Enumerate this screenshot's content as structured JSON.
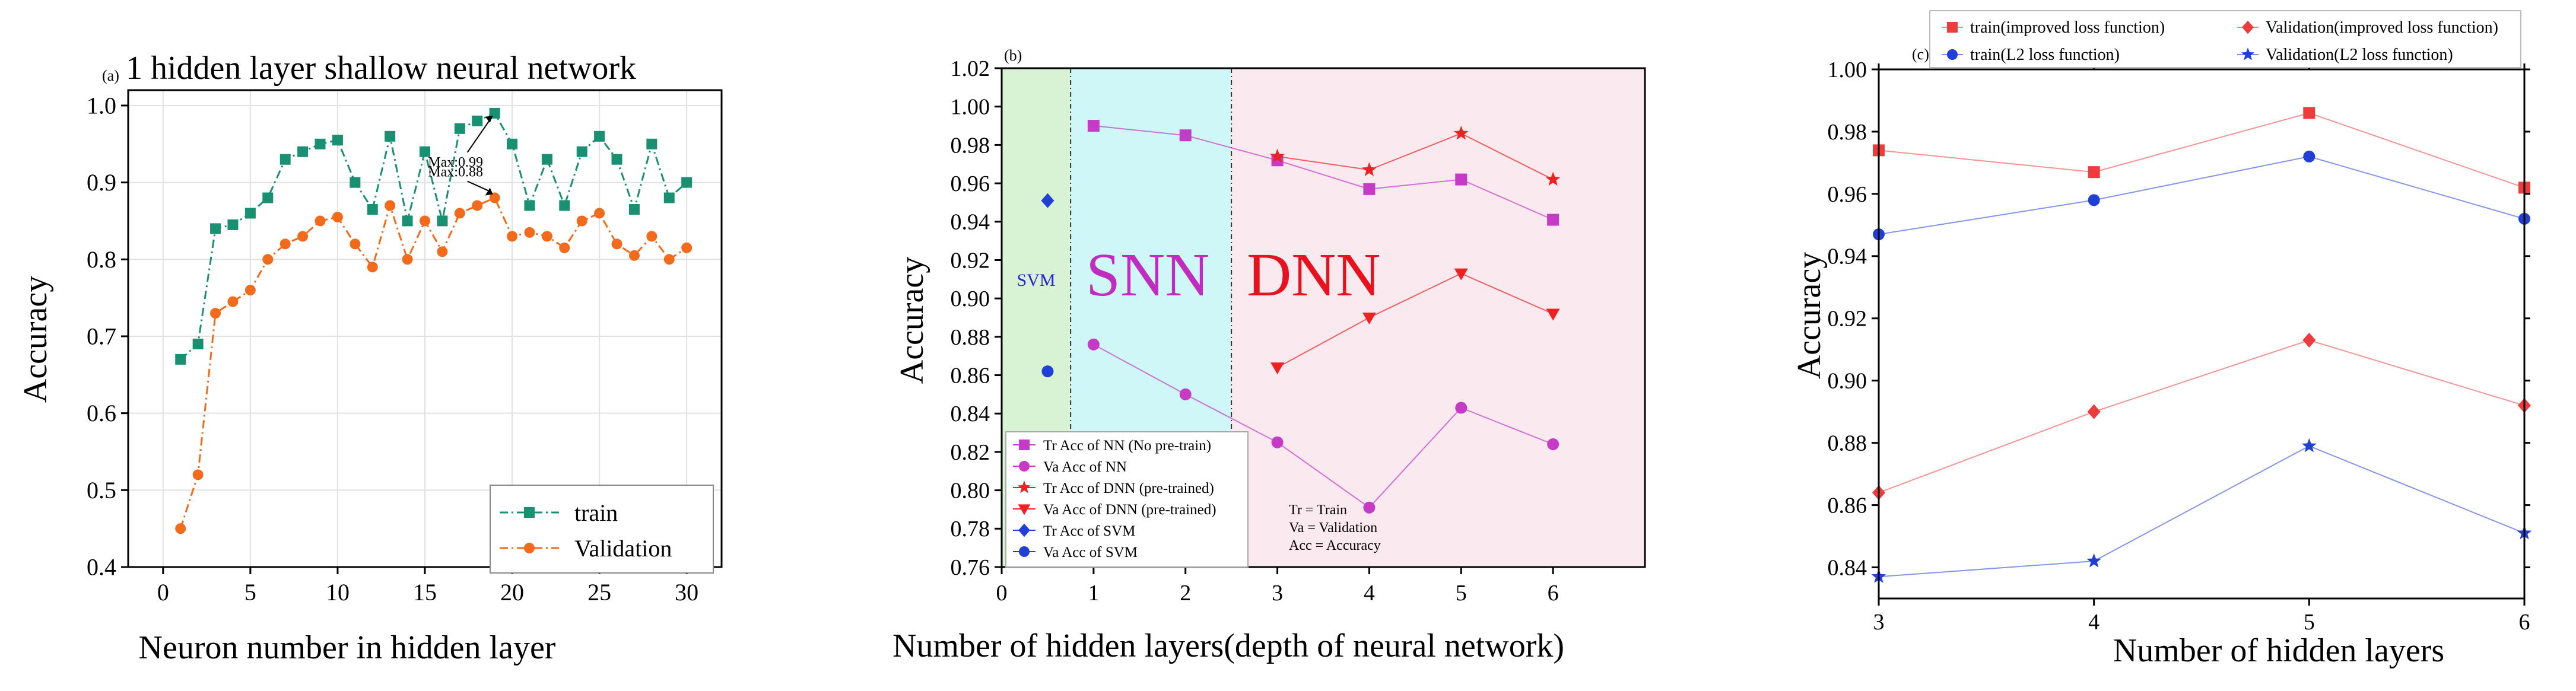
{
  "chart_data": [
    {
      "panel": "(a)",
      "type": "line",
      "title": "1 hidden layer shallow neural network",
      "xlabel": "Neuron number in hidden layer",
      "ylabel": "Accuracy",
      "xlim": [
        -2,
        32
      ],
      "ylim": [
        0.4,
        1.02
      ],
      "xticks": [
        0,
        5,
        10,
        15,
        20,
        25,
        30
      ],
      "xtick_labels": [
        "0",
        "5",
        "10",
        "15",
        "20",
        "25",
        "30"
      ],
      "yticks": [
        0.4,
        0.5,
        0.6,
        0.7,
        0.8,
        0.9,
        1.0
      ],
      "ytick_labels": [
        "0.4",
        "0.5",
        "0.6",
        "0.7",
        "0.8",
        "0.9",
        "1.0"
      ],
      "grid": true,
      "legend_position": "bottom-right",
      "series": [
        {
          "name": "train",
          "color": "#1a9073",
          "marker": "square",
          "line": "dash-dot",
          "x": [
            1,
            2,
            3,
            4,
            5,
            6,
            7,
            8,
            9,
            10,
            11,
            12,
            13,
            14,
            15,
            16,
            17,
            18,
            19,
            20,
            21,
            22,
            23,
            24,
            25,
            26,
            27,
            28,
            29,
            30
          ],
          "values": [
            0.67,
            0.69,
            0.84,
            0.845,
            0.86,
            0.88,
            0.93,
            0.94,
            0.95,
            0.955,
            0.9,
            0.865,
            0.96,
            0.85,
            0.94,
            0.85,
            0.97,
            0.98,
            0.99,
            0.95,
            0.87,
            0.93,
            0.87,
            0.94,
            0.96,
            0.93,
            0.865,
            0.95,
            0.88,
            0.9
          ]
        },
        {
          "name": "Validation",
          "color": "#f26b1d",
          "marker": "circle",
          "line": "dash-dot",
          "x": [
            1,
            2,
            3,
            4,
            5,
            6,
            7,
            8,
            9,
            10,
            11,
            12,
            13,
            14,
            15,
            16,
            17,
            18,
            19,
            20,
            21,
            22,
            23,
            24,
            25,
            26,
            27,
            28,
            29,
            30
          ],
          "values": [
            0.45,
            0.52,
            0.73,
            0.745,
            0.76,
            0.8,
            0.82,
            0.83,
            0.85,
            0.855,
            0.82,
            0.79,
            0.87,
            0.8,
            0.85,
            0.81,
            0.86,
            0.87,
            0.88,
            0.83,
            0.835,
            0.83,
            0.815,
            0.85,
            0.86,
            0.82,
            0.805,
            0.83,
            0.8,
            0.815
          ]
        }
      ],
      "annotations": [
        {
          "text": "Max:0.99",
          "x": 19,
          "y": 0.99
        },
        {
          "text": "Max:0.88",
          "x": 19,
          "y": 0.88
        }
      ]
    },
    {
      "panel": "(b)",
      "type": "scatter",
      "xlabel": "Number of hidden layers(depth of neural network)",
      "ylabel": "Accuracy",
      "xlim": [
        0,
        7
      ],
      "ylim": [
        0.76,
        1.02
      ],
      "xticks": [
        0,
        1,
        2,
        3,
        4,
        5,
        6
      ],
      "xtick_labels": [
        "0",
        "1",
        "2",
        "3",
        "4",
        "5",
        "6"
      ],
      "yticks": [
        0.76,
        0.78,
        0.8,
        0.82,
        0.84,
        0.86,
        0.88,
        0.9,
        0.92,
        0.94,
        0.96,
        0.98,
        1.0,
        1.02
      ],
      "ytick_labels": [
        "0.76",
        "0.78",
        "0.80",
        "0.82",
        "0.84",
        "0.86",
        "0.88",
        "0.90",
        "0.92",
        "0.94",
        "0.96",
        "0.98",
        "1.00",
        "1.02"
      ],
      "grid": false,
      "legend_position": "bottom-left",
      "regions": [
        {
          "label": "SVM",
          "from": 0,
          "to": 0.75,
          "color": "#d8f3d4",
          "label_color": "#2222dd",
          "label_size": 30
        },
        {
          "label": "SNN",
          "from": 0.75,
          "to": 2.5,
          "color": "#cff7f7",
          "label_color": "#c02cc0",
          "label_size": 104
        },
        {
          "label": "DNN",
          "from": 2.5,
          "to": 7,
          "color": "#fbe9f0",
          "label_color": "#e8121e",
          "label_size": 104
        }
      ],
      "series": [
        {
          "name": "Tr Acc of NN (No pre-train)",
          "color": "#c63bc6",
          "marker": "square",
          "x": [
            1,
            2,
            3,
            4,
            5,
            6
          ],
          "values": [
            0.99,
            0.985,
            0.972,
            0.957,
            0.962,
            0.941
          ]
        },
        {
          "name": "Va Acc of NN",
          "color": "#c63bc6",
          "marker": "circle",
          "x": [
            1,
            2,
            3,
            4,
            5,
            6
          ],
          "values": [
            0.876,
            0.85,
            0.825,
            0.791,
            0.843,
            0.824
          ]
        },
        {
          "name": "Tr Acc of DNN (pre-trained)",
          "color": "#ee2222",
          "marker": "star",
          "x": [
            3,
            4,
            5,
            6
          ],
          "values": [
            0.974,
            0.967,
            0.986,
            0.962
          ]
        },
        {
          "name": "Va Acc of DNN (pre-trained)",
          "color": "#ee2222",
          "marker": "triangle-down",
          "x": [
            3,
            4,
            5,
            6
          ],
          "values": [
            0.864,
            0.89,
            0.913,
            0.892
          ]
        },
        {
          "name": "Tr Acc of SVM",
          "color": "#1f3fd6",
          "marker": "diamond",
          "x": [
            0.5
          ],
          "values": [
            0.951
          ]
        },
        {
          "name": "Va Acc of SVM",
          "color": "#1f3fd6",
          "marker": "circle",
          "x": [
            0.5
          ],
          "values": [
            0.862
          ]
        }
      ],
      "notes": [
        "Tr = Train",
        "Va = Validation",
        "Acc = Accuracy"
      ]
    },
    {
      "panel": "(c)",
      "type": "line",
      "xlabel": "Number of hidden layers",
      "ylabel": "Accuracy",
      "xlim": [
        3,
        6
      ],
      "ylim": [
        0.83,
        1.0
      ],
      "xticks": [
        3,
        4,
        5,
        6
      ],
      "xtick_labels": [
        "3",
        "4",
        "5",
        "6"
      ],
      "yticks": [
        0.84,
        0.86,
        0.88,
        0.9,
        0.92,
        0.94,
        0.96,
        0.98,
        1.0
      ],
      "ytick_labels": [
        "0.84",
        "0.86",
        "0.88",
        "0.90",
        "0.92",
        "0.94",
        "0.96",
        "0.98",
        "1.00"
      ],
      "grid": false,
      "legend_position": "top (above plot)",
      "series": [
        {
          "name": "train(improved loss function)",
          "color": "#ee3b3b",
          "marker": "square",
          "x": [
            3,
            4,
            5,
            6
          ],
          "values": [
            0.974,
            0.967,
            0.986,
            0.962
          ]
        },
        {
          "name": "Validation(improved loss function)",
          "color": "#ee3b3b",
          "marker": "diamond",
          "x": [
            3,
            4,
            5,
            6
          ],
          "values": [
            0.864,
            0.89,
            0.913,
            0.892
          ]
        },
        {
          "name": "train(L2 loss function)",
          "color": "#1f3fd6",
          "marker": "circle",
          "x": [
            3,
            4,
            5,
            6
          ],
          "values": [
            0.947,
            0.958,
            0.972,
            0.952
          ]
        },
        {
          "name": "Validation(L2 loss function)",
          "color": "#1f3fd6",
          "marker": "star",
          "x": [
            3,
            4,
            5,
            6
          ],
          "values": [
            0.837,
            0.842,
            0.879,
            0.851
          ]
        }
      ]
    }
  ]
}
